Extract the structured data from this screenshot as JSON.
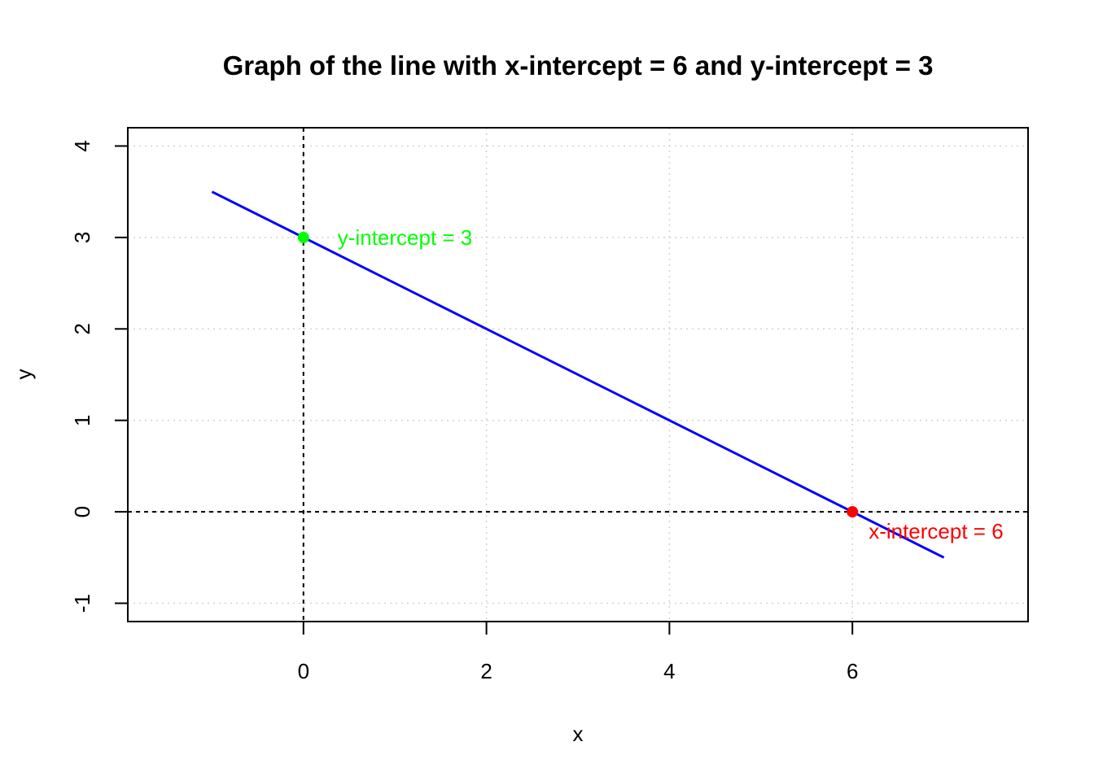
{
  "chart_data": {
    "type": "line",
    "title": "Graph of the line with x-intercept = 6 and y-intercept = 3",
    "xlabel": "x",
    "ylabel": "y",
    "xlim": [
      -1.92,
      7.92
    ],
    "ylim": [
      -1.2,
      4.2
    ],
    "x_ticks": [
      0,
      2,
      4,
      6
    ],
    "y_ticks": [
      -1,
      0,
      1,
      2,
      3,
      4
    ],
    "grid": true,
    "series": [
      {
        "color": "#0000ff",
        "x": [
          -1,
          7
        ],
        "y": [
          3.5,
          -0.5
        ]
      }
    ],
    "reference_lines": [
      {
        "axis": "y",
        "value": 0,
        "style": "dashed",
        "color": "#000000"
      },
      {
        "axis": "x",
        "value": 0,
        "style": "dashed",
        "color": "#000000"
      }
    ],
    "points": [
      {
        "x": 0,
        "y": 3,
        "color": "#00ff00",
        "label": "y-intercept = 3"
      },
      {
        "x": 6,
        "y": 0,
        "color": "#ff0000",
        "label": "x-intercept = 6"
      }
    ]
  }
}
